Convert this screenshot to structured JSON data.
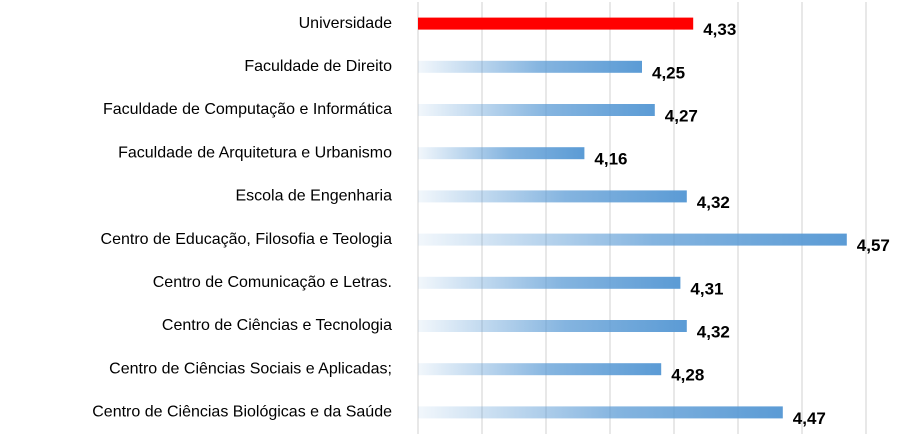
{
  "chart_data": {
    "type": "barh",
    "categories": [
      "Universidade",
      "Faculdade de Direito",
      "Faculdade de Computação e Informática",
      "Faculdade de Arquitetura e Urbanismo",
      "Escola de Engenharia",
      "Centro de Educação, Filosofia e Teologia",
      "Centro de Comunicação e Letras.",
      "Centro de Ciências e Tecnologia",
      "Centro de Ciências Sociais e Aplicadas;",
      "Centro de Ciências Biológicas e da Saúde"
    ],
    "values": [
      4.33,
      4.25,
      4.27,
      4.16,
      4.32,
      4.57,
      4.31,
      4.32,
      4.28,
      4.47
    ],
    "value_labels": [
      "4,33",
      "4,25",
      "4,27",
      "4,16",
      "4,32",
      "4,57",
      "4,31",
      "4,32",
      "4,28",
      "4,47"
    ],
    "colors": [
      "#ff0000",
      "#5b9bd5",
      "#5b9bd5",
      "#5b9bd5",
      "#5b9bd5",
      "#5b9bd5",
      "#5b9bd5",
      "#5b9bd5",
      "#5b9bd5",
      "#5b9bd5"
    ],
    "gradient_fill": [
      false,
      true,
      true,
      true,
      true,
      true,
      true,
      true,
      true,
      true
    ],
    "xlim": [
      3.9,
      4.6
    ],
    "xticks": [
      4.0,
      4.1,
      4.2,
      4.3,
      4.4,
      4.5,
      4.6
    ],
    "grid": true
  }
}
